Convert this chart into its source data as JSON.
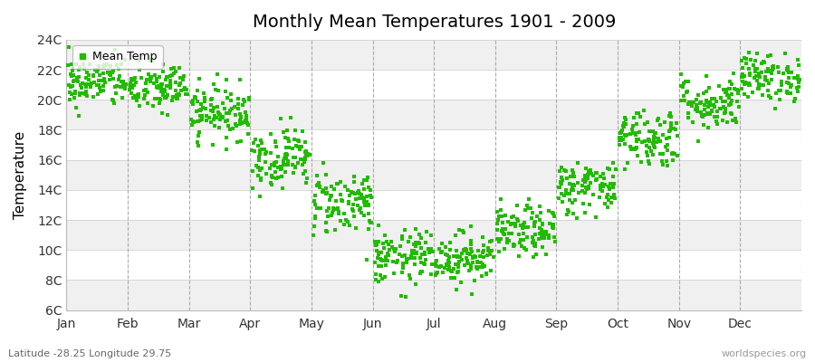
{
  "title": "Monthly Mean Temperatures 1901 - 2009",
  "ylabel": "Temperature",
  "subtitle": "Latitude -28.25 Longitude 29.75",
  "watermark": "worldspecies.org",
  "legend_label": "Mean Temp",
  "dot_color": "#22bb00",
  "dot_size": 6,
  "ylim": [
    6,
    24
  ],
  "ytick_labels": [
    "6C",
    "8C",
    "10C",
    "12C",
    "14C",
    "16C",
    "18C",
    "20C",
    "22C",
    "24C"
  ],
  "ytick_values": [
    6,
    8,
    10,
    12,
    14,
    16,
    18,
    20,
    22,
    24
  ],
  "months": [
    "Jan",
    "Feb",
    "Mar",
    "Apr",
    "May",
    "Jun",
    "Jul",
    "Aug",
    "Sep",
    "Oct",
    "Nov",
    "Dec"
  ],
  "month_mean_temps": [
    21.2,
    20.8,
    19.2,
    16.2,
    13.2,
    9.5,
    9.5,
    11.2,
    14.2,
    17.5,
    19.8,
    21.5
  ],
  "month_std_devs": [
    0.85,
    0.85,
    0.9,
    1.0,
    1.1,
    0.9,
    0.85,
    0.85,
    0.9,
    1.0,
    0.9,
    0.8
  ],
  "bg_color": "#ffffff",
  "band_colors": [
    "#f0f0f0",
    "#ffffff"
  ],
  "vline_color": "#999999",
  "n_years": 109
}
